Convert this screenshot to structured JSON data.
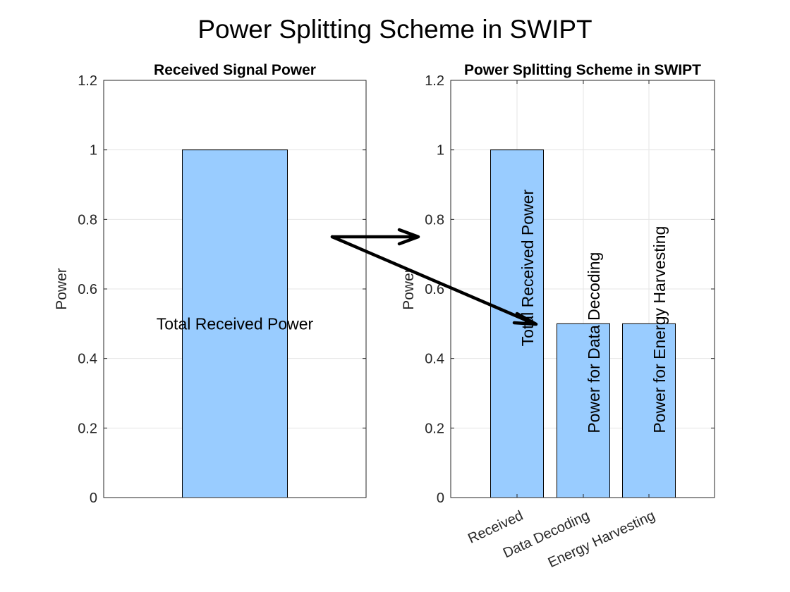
{
  "figure_title": "Power Splitting Scheme in SWIPT",
  "colors": {
    "bar_fill": "#99CCFF",
    "bar_edge": "#000000",
    "grid": "#E6E6E6",
    "axis": "#262626",
    "arrow": "#000000"
  },
  "chart_data": [
    {
      "type": "bar",
      "title": "Received Signal Power",
      "ylabel": "Power",
      "xlabel": "",
      "ylim": [
        0,
        1.2
      ],
      "yticks": [
        "0",
        "0.2",
        "0.4",
        "0.6",
        "0.8",
        "1",
        "1.2"
      ],
      "grid": true,
      "categories": [
        ""
      ],
      "values": [
        1
      ],
      "bar_labels": [
        "Total Received Power"
      ],
      "bar_label_orientation": "horizontal"
    },
    {
      "type": "bar",
      "title": "Power Splitting Scheme in SWIPT",
      "ylabel": "Power",
      "xlabel": "",
      "ylim": [
        0,
        1.2
      ],
      "yticks": [
        "0",
        "0.2",
        "0.4",
        "0.6",
        "0.8",
        "1",
        "1.2"
      ],
      "grid": true,
      "categories": [
        "Received",
        "Data Decoding",
        "Energy Harvesting"
      ],
      "values": [
        1,
        0.5,
        0.5
      ],
      "bar_labels": [
        "Total Received Power",
        "Power for Data Decoding",
        "Power for Energy Harvesting"
      ],
      "bar_label_orientation": "vertical"
    }
  ]
}
